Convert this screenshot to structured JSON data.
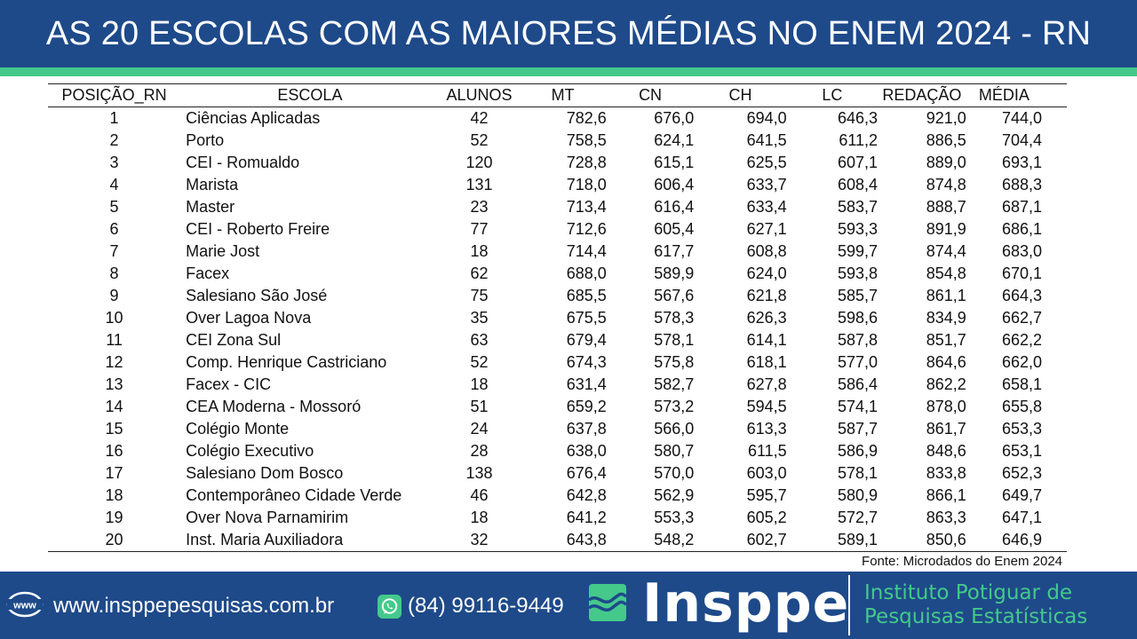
{
  "header": {
    "title": "AS 20 ESCOLAS COM AS MAIORES MÉDIAS NO ENEM 2024 - RN"
  },
  "colors": {
    "header_bg": "#1e4a8a",
    "accent_green": "#44c98b",
    "footer_bg": "#1e4a8a"
  },
  "table": {
    "columns": [
      "POSIÇÃO_RN",
      "ESCOLA",
      "ALUNOS",
      "MT",
      "CN",
      "CH",
      "LC",
      "REDAÇÃO",
      "MÉDIA"
    ],
    "rows": [
      [
        "1",
        "Ciências Aplicadas",
        "42",
        "782,6",
        "676,0",
        "694,0",
        "646,3",
        "921,0",
        "744,0"
      ],
      [
        "2",
        "Porto",
        "52",
        "758,5",
        "624,1",
        "641,5",
        "611,2",
        "886,5",
        "704,4"
      ],
      [
        "3",
        "CEI - Romualdo",
        "120",
        "728,8",
        "615,1",
        "625,5",
        "607,1",
        "889,0",
        "693,1"
      ],
      [
        "4",
        "Marista",
        "131",
        "718,0",
        "606,4",
        "633,7",
        "608,4",
        "874,8",
        "688,3"
      ],
      [
        "5",
        "Master",
        "23",
        "713,4",
        "616,4",
        "633,4",
        "583,7",
        "888,7",
        "687,1"
      ],
      [
        "6",
        "CEI - Roberto Freire",
        "77",
        "712,6",
        "605,4",
        "627,1",
        "593,3",
        "891,9",
        "686,1"
      ],
      [
        "7",
        "Marie Jost",
        "18",
        "714,4",
        "617,7",
        "608,8",
        "599,7",
        "874,4",
        "683,0"
      ],
      [
        "8",
        "Facex",
        "62",
        "688,0",
        "589,9",
        "624,0",
        "593,8",
        "854,8",
        "670,1"
      ],
      [
        "9",
        "Salesiano São José",
        "75",
        "685,5",
        "567,6",
        "621,8",
        "585,7",
        "861,1",
        "664,3"
      ],
      [
        "10",
        "Over Lagoa Nova",
        "35",
        "675,5",
        "578,3",
        "626,3",
        "598,6",
        "834,9",
        "662,7"
      ],
      [
        "11",
        "CEI Zona Sul",
        "63",
        "679,4",
        "578,1",
        "614,1",
        "587,8",
        "851,7",
        "662,2"
      ],
      [
        "12",
        "Comp. Henrique Castriciano",
        "52",
        "674,3",
        "575,8",
        "618,1",
        "577,0",
        "864,6",
        "662,0"
      ],
      [
        "13",
        "Facex - CIC",
        "18",
        "631,4",
        "582,7",
        "627,8",
        "586,4",
        "862,2",
        "658,1"
      ],
      [
        "14",
        "CEA Moderna - Mossoró",
        "51",
        "659,2",
        "573,2",
        "594,5",
        "574,1",
        "878,0",
        "655,8"
      ],
      [
        "15",
        "Colégio Monte",
        "24",
        "637,8",
        "566,0",
        "613,3",
        "587,7",
        "861,7",
        "653,3"
      ],
      [
        "16",
        "Colégio Executivo",
        "28",
        "638,0",
        "580,7",
        "611,5",
        "586,9",
        "848,6",
        "653,1"
      ],
      [
        "17",
        "Salesiano Dom Bosco",
        "138",
        "676,4",
        "570,0",
        "603,0",
        "578,1",
        "833,8",
        "652,3"
      ],
      [
        "18",
        "Contemporâneo Cidade Verde",
        "46",
        "642,8",
        "562,9",
        "595,7",
        "580,9",
        "866,1",
        "649,7"
      ],
      [
        "19",
        "Over Nova Parnamirim",
        "18",
        "641,2",
        "553,3",
        "605,2",
        "572,7",
        "863,3",
        "647,1"
      ],
      [
        "20",
        "Inst. Maria Auxiliadora",
        "32",
        "643,8",
        "548,2",
        "602,7",
        "589,1",
        "850,6",
        "646,9"
      ]
    ],
    "source": "Fonte: Microdados do Enem 2024"
  },
  "footer": {
    "www_icon_label": "www",
    "website": "www.insppepesquisas.com.br",
    "phone": "(84) 99116-9449",
    "brand": "Insppe",
    "institute_line1": "Instituto Potiguar de",
    "institute_line2": "Pesquisas Estatísticas",
    "icons": [
      "globe-www-icon",
      "whatsapp-icon",
      "insppe-logo-mark"
    ]
  }
}
